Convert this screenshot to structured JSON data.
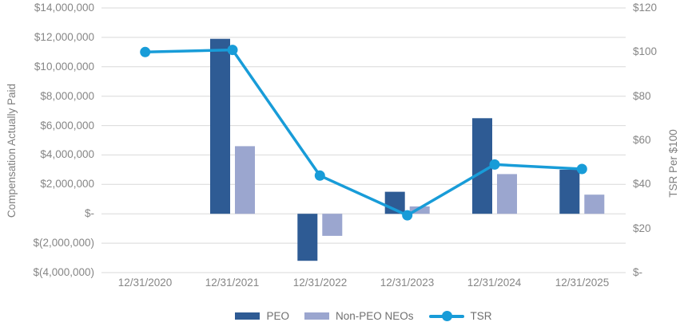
{
  "chart_data": {
    "type": "combo-bar-line",
    "title": "",
    "categories": [
      "12/31/2020",
      "12/31/2021",
      "12/31/2022",
      "12/31/2023",
      "12/31/2024",
      "12/31/2025"
    ],
    "series": [
      {
        "name": "PEO",
        "type": "bar",
        "axis": "left",
        "color": "#2E5B94",
        "values": [
          null,
          11900000,
          -3200000,
          1500000,
          6500000,
          3000000
        ]
      },
      {
        "name": "Non-PEO NEOs",
        "type": "bar",
        "axis": "left",
        "color": "#9BA6CF",
        "values": [
          null,
          4600000,
          -1500000,
          500000,
          2700000,
          1300000
        ]
      },
      {
        "name": "TSR",
        "type": "line",
        "axis": "right",
        "color": "#189CD8",
        "values": [
          100,
          101,
          44,
          26,
          49,
          47
        ]
      }
    ],
    "left_axis": {
      "title": "Compensation Actually Paid",
      "min": -4000000,
      "max": 14000000,
      "step": 2000000,
      "ticks": [
        {
          "label": "$14,000,000",
          "value": 14000000
        },
        {
          "label": "$12,000,000",
          "value": 12000000
        },
        {
          "label": "$10,000,000",
          "value": 10000000
        },
        {
          "label": "$8,000,000",
          "value": 8000000
        },
        {
          "label": "$6,000,000",
          "value": 6000000
        },
        {
          "label": "$4,000,000",
          "value": 4000000
        },
        {
          "label": "$2,000,000",
          "value": 2000000
        },
        {
          "label": "$-",
          "value": 0
        },
        {
          "label": "$(2,000,000)",
          "value": -2000000
        },
        {
          "label": "$(4,000,000)",
          "value": -4000000
        }
      ]
    },
    "right_axis": {
      "title": "TSR Per $100",
      "min": 0,
      "max": 120,
      "step": 20,
      "ticks": [
        {
          "label": "$120",
          "value": 120
        },
        {
          "label": "$100",
          "value": 100
        },
        {
          "label": "$80",
          "value": 80
        },
        {
          "label": "$60",
          "value": 60
        },
        {
          "label": "$40",
          "value": 40
        },
        {
          "label": "$20",
          "value": 20
        },
        {
          "label": "$-",
          "value": 0
        }
      ]
    },
    "legend": [
      {
        "label": "PEO",
        "swatch": "bar",
        "color": "#2E5B94"
      },
      {
        "label": "Non-PEO NEOs",
        "swatch": "bar",
        "color": "#9BA6CF"
      },
      {
        "label": "TSR",
        "swatch": "line",
        "color": "#189CD8"
      }
    ],
    "grid": {
      "color": "#D9D9D9",
      "horizontal": true,
      "vertical": false
    },
    "legend_position": "bottom"
  }
}
